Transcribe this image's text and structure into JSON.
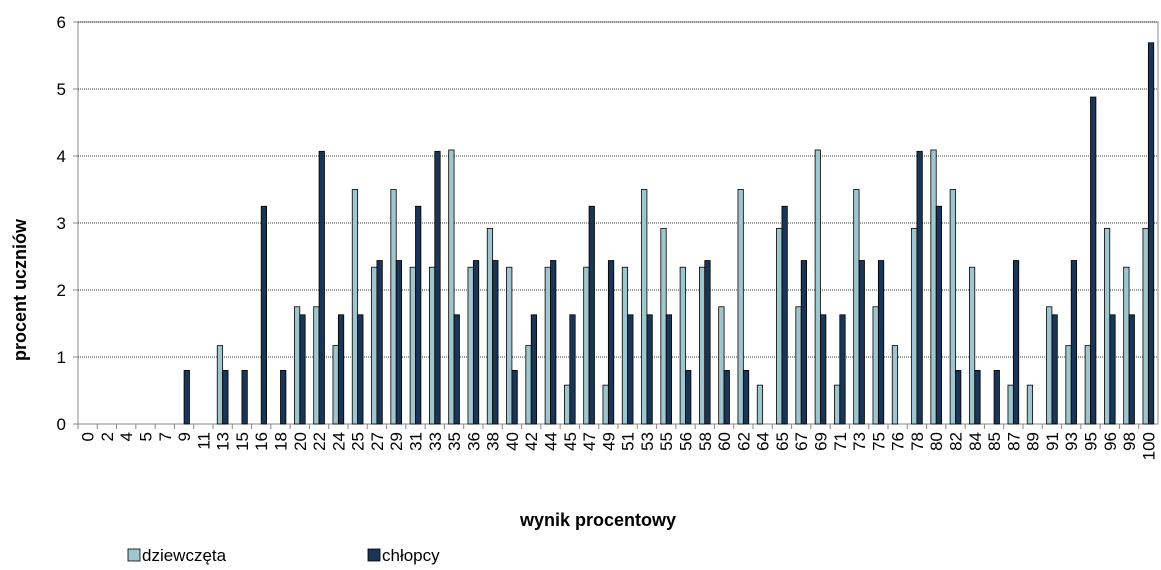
{
  "chart_data": {
    "type": "bar",
    "x_label": "wynik procentowy",
    "y_label": "procent uczniów",
    "categories": [
      "0",
      "2",
      "4",
      "5",
      "7",
      "9",
      "11",
      "13",
      "15",
      "16",
      "18",
      "20",
      "22",
      "24",
      "25",
      "27",
      "29",
      "31",
      "33",
      "35",
      "36",
      "38",
      "40",
      "42",
      "44",
      "45",
      "47",
      "49",
      "51",
      "53",
      "55",
      "56",
      "58",
      "60",
      "62",
      "64",
      "65",
      "67",
      "69",
      "71",
      "73",
      "75",
      "76",
      "78",
      "80",
      "82",
      "84",
      "85",
      "87",
      "89",
      "91",
      "93",
      "95",
      "96",
      "98",
      "100"
    ],
    "series": [
      {
        "name": "dziewczęta",
        "color": "#9fc6cf",
        "values": [
          0,
          0,
          0,
          0,
          0,
          0,
          0,
          1.17,
          0,
          0,
          0,
          1.75,
          1.75,
          1.17,
          3.5,
          2.34,
          3.5,
          2.34,
          2.34,
          4.09,
          2.34,
          2.92,
          2.34,
          1.17,
          2.34,
          0.58,
          2.34,
          0.58,
          2.34,
          3.5,
          2.92,
          2.34,
          2.34,
          1.75,
          3.5,
          0.58,
          2.92,
          1.75,
          4.09,
          0.58,
          3.5,
          1.75,
          1.17,
          2.92,
          4.09,
          3.5,
          2.34,
          0,
          0.58,
          0.58,
          1.75,
          1.17,
          1.17,
          2.92,
          2.34,
          2.92
        ]
      },
      {
        "name": "chłopcy",
        "color": "#1b3557",
        "values": [
          0,
          0,
          0,
          0,
          0,
          0.8,
          0,
          0.8,
          0.8,
          3.25,
          0.8,
          1.63,
          4.07,
          1.63,
          1.63,
          2.44,
          2.44,
          3.25,
          4.07,
          1.63,
          2.44,
          2.44,
          0.8,
          1.63,
          2.44,
          1.63,
          3.25,
          2.44,
          1.63,
          1.63,
          1.63,
          0.8,
          2.44,
          0.8,
          0.8,
          0,
          3.25,
          2.44,
          1.63,
          1.63,
          2.44,
          2.44,
          0,
          4.07,
          3.25,
          0.8,
          0.8,
          0.8,
          2.44,
          0,
          1.63,
          2.44,
          4.88,
          1.63,
          1.63,
          5.69
        ]
      }
    ],
    "ylim": [
      0,
      6
    ],
    "yticks": [
      0,
      1,
      2,
      3,
      4,
      5,
      6
    ],
    "grid": true,
    "legend": "bottom"
  }
}
